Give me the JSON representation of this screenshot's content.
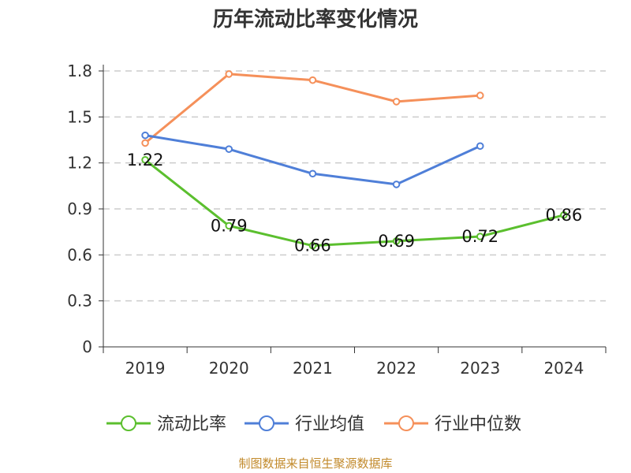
{
  "chart_data": {
    "type": "line",
    "title": "历年流动比率变化情况",
    "categories": [
      "2019",
      "2020",
      "2021",
      "2022",
      "2023",
      "2024"
    ],
    "y_ticks": [
      "0",
      "0.3",
      "0.6",
      "0.9",
      "1.2",
      "1.5",
      "1.8"
    ],
    "ylim": [
      0,
      1.8
    ],
    "grid": true,
    "legend_position": "bottom",
    "series": [
      {
        "name": "流动比率",
        "color": "#5bbf2e",
        "values": [
          1.22,
          0.79,
          0.66,
          0.69,
          0.72,
          0.86
        ],
        "labels": [
          "1.22",
          "0.79",
          "0.66",
          "0.69",
          "0.72",
          "0.86"
        ]
      },
      {
        "name": "行业均值",
        "color": "#4f7fd8",
        "values": [
          1.38,
          1.29,
          1.13,
          1.06,
          1.31,
          null
        ]
      },
      {
        "name": "行业中位数",
        "color": "#f5905a",
        "values": [
          1.33,
          1.78,
          1.74,
          1.6,
          1.64,
          null
        ]
      }
    ]
  },
  "footer": {
    "source": "制图数据来自恒生聚源数据库"
  }
}
